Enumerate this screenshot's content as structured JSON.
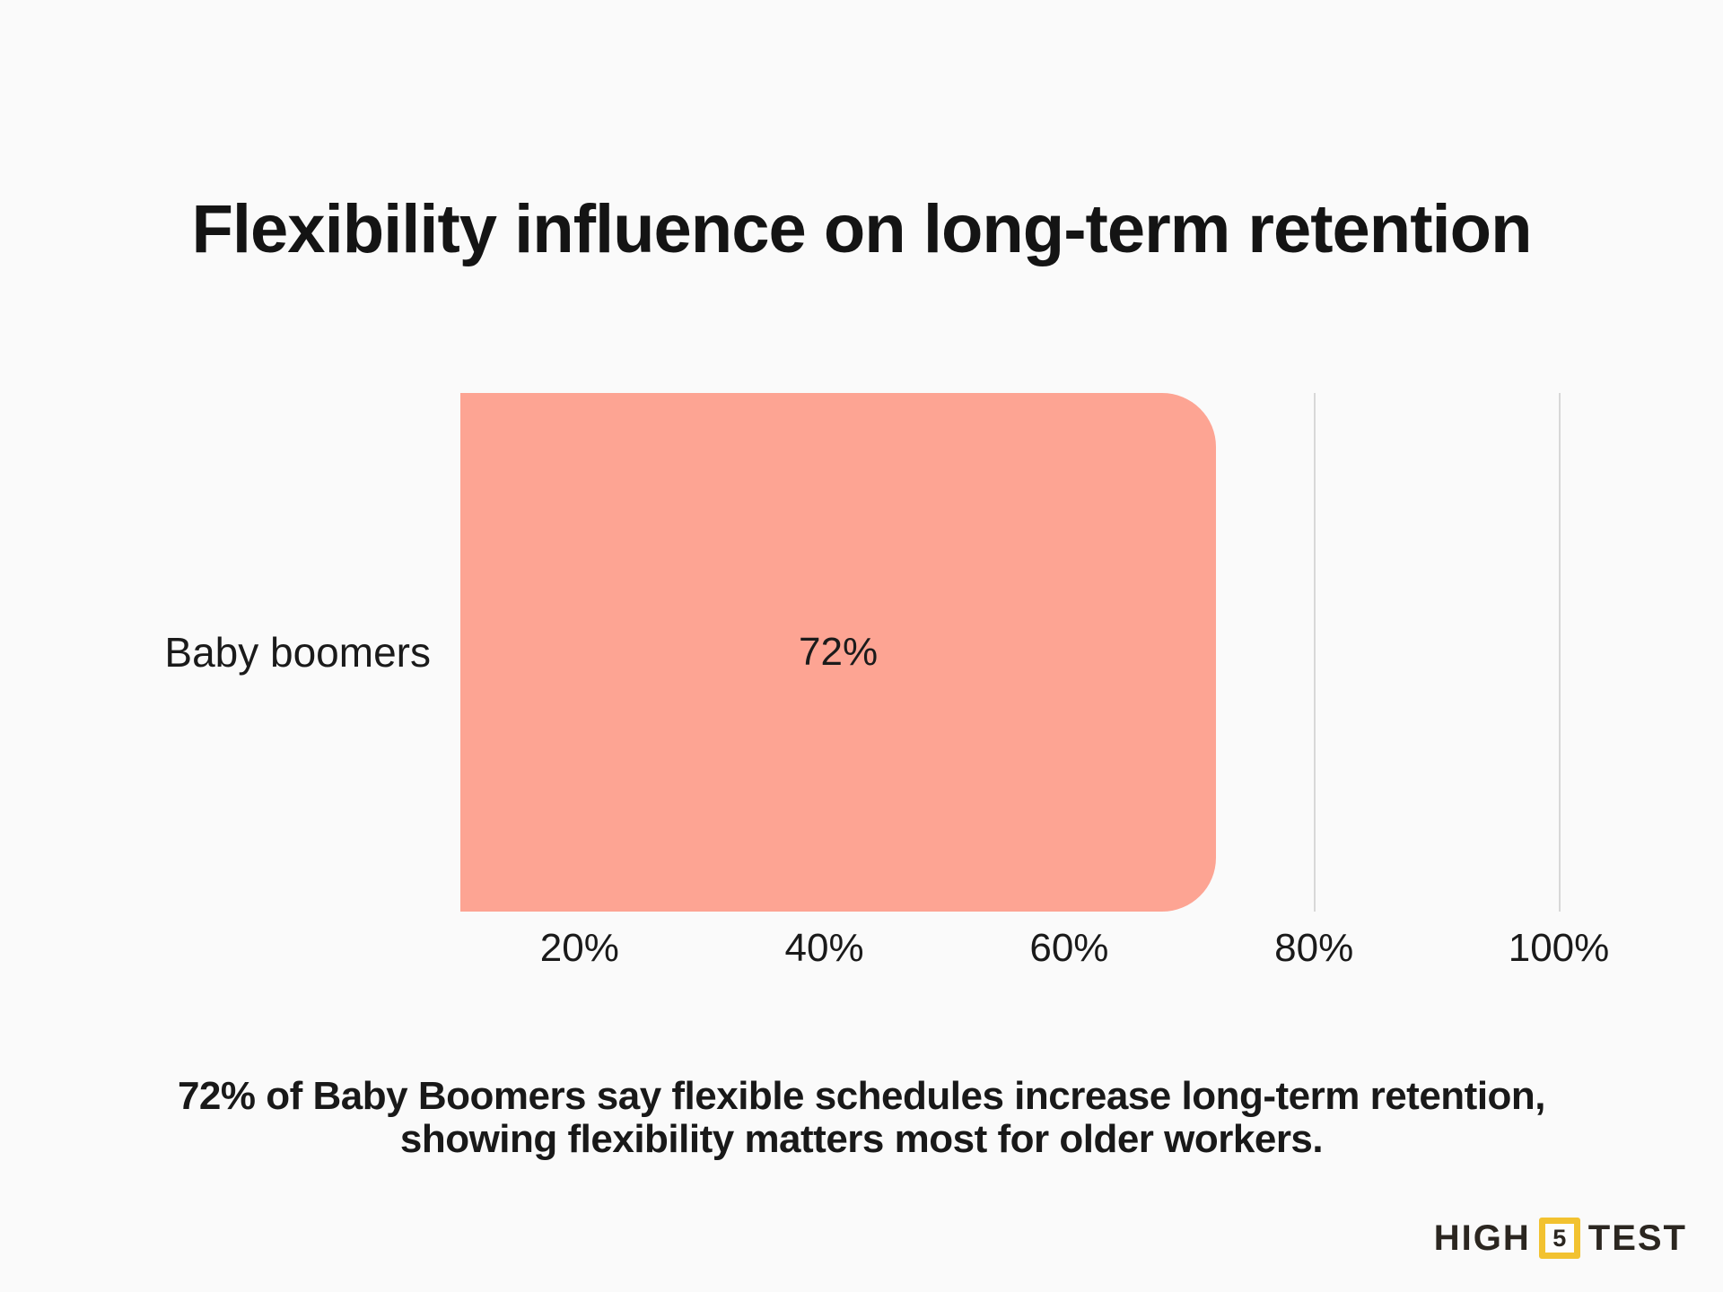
{
  "page": {
    "background_color": "#FAFAFA",
    "text_color": "#161616"
  },
  "chart_data": {
    "type": "bar",
    "orientation": "horizontal",
    "title": "Flexibility influence on long-term retention",
    "categories": [
      "Baby boomers"
    ],
    "values": [
      72
    ],
    "value_labels": [
      "72%"
    ],
    "x_tick_labels": [
      "20%",
      "40%",
      "60%",
      "80%",
      "100%"
    ],
    "x_tick_values": [
      20,
      40,
      60,
      80,
      100
    ],
    "xlim": [
      0,
      100
    ],
    "xlabel": "",
    "ylabel": "",
    "legend": "none",
    "grid": "vertical gridlines at ticks, visible beyond bar end",
    "bar_color": "#FDA493",
    "gridline_color": "#D8D8D8"
  },
  "caption": {
    "line1": "72% of Baby Boomers say flexible schedules increase long-term retention,",
    "line2": "showing flexibility matters most for older workers."
  },
  "logo": {
    "text_left": "HIGH",
    "badge_number": "5",
    "text_right": "TEST",
    "badge_color": "#F2C230",
    "text_color": "#2B2620"
  }
}
